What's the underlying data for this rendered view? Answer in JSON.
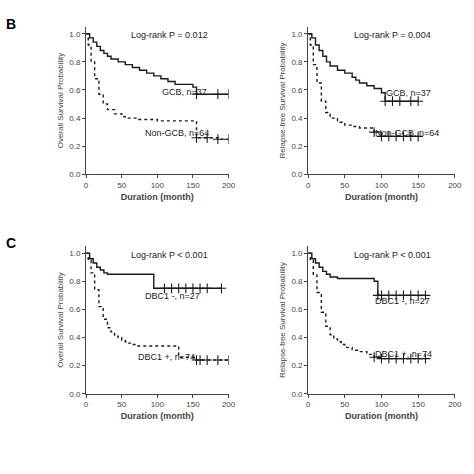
{
  "chart_data": [
    {
      "type": "step",
      "panel": "B",
      "annotation": "Log-rank P = 0.012",
      "xlabel": "Duration (month)",
      "ylabel": "Overall Survival Probability",
      "xlim": [
        0,
        200
      ],
      "ylim": [
        0.0,
        1.05
      ],
      "xticks": [
        0,
        50,
        100,
        150,
        200
      ],
      "yticks": [
        {
          "value": 0.0,
          "label": "0.0"
        },
        0.2,
        0.4,
        0.6,
        0.8,
        {
          "value": 1.0,
          "label": "1.0"
        }
      ],
      "grid": false,
      "series": [
        {
          "name": "GCB, n=37",
          "color": "#1a1a1a",
          "line_style": "solid",
          "marker": "cross",
          "x": [
            0,
            5,
            10,
            15,
            20,
            25,
            30,
            35,
            45,
            55,
            65,
            75,
            85,
            95,
            105,
            115,
            125,
            150,
            155,
            185,
            200
          ],
          "values": [
            1.0,
            0.97,
            0.94,
            0.91,
            0.88,
            0.86,
            0.84,
            0.82,
            0.8,
            0.78,
            0.76,
            0.74,
            0.72,
            0.7,
            0.68,
            0.66,
            0.64,
            0.62,
            0.57,
            0.57,
            0.57
          ],
          "censor_x": [
            155,
            185,
            200
          ],
          "censor_values": [
            0.57,
            0.57,
            0.57
          ]
        },
        {
          "name": "Non-GCB, n=64",
          "color": "#1a1a1a",
          "line_style": "dotted",
          "marker": "cross",
          "x": [
            0,
            3,
            7,
            12,
            18,
            24,
            30,
            40,
            50,
            55,
            60,
            70,
            80,
            90,
            100,
            110,
            150,
            155,
            170,
            185,
            200
          ],
          "values": [
            1.0,
            0.92,
            0.8,
            0.68,
            0.57,
            0.5,
            0.46,
            0.43,
            0.41,
            0.4,
            0.4,
            0.39,
            0.39,
            0.39,
            0.38,
            0.38,
            0.38,
            0.26,
            0.26,
            0.25,
            0.25
          ],
          "censor_x": [
            155,
            170,
            185,
            200
          ],
          "censor_values": [
            0.26,
            0.26,
            0.25,
            0.25
          ]
        }
      ]
    },
    {
      "type": "step",
      "annotation": "Log-rank P = 0.004",
      "xlabel": "Duration (month)",
      "ylabel": "Relapse-free Survival Probability",
      "xlim": [
        0,
        200
      ],
      "ylim": [
        0.0,
        1.05
      ],
      "xticks": [
        0,
        50,
        100,
        150,
        200
      ],
      "yticks": [
        {
          "value": 0.0,
          "label": "0.0"
        },
        0.2,
        0.4,
        0.6,
        0.8,
        {
          "value": 1.0,
          "label": "1.0"
        }
      ],
      "grid": false,
      "series": [
        {
          "name": "GCB, n=37",
          "color": "#1a1a1a",
          "line_style": "solid",
          "marker": "cross",
          "x": [
            0,
            5,
            10,
            15,
            20,
            25,
            30,
            40,
            50,
            60,
            65,
            70,
            80,
            90,
            100,
            105,
            115,
            125,
            140,
            150
          ],
          "values": [
            1.0,
            0.97,
            0.92,
            0.88,
            0.84,
            0.8,
            0.77,
            0.74,
            0.72,
            0.69,
            0.67,
            0.65,
            0.63,
            0.61,
            0.58,
            0.52,
            0.52,
            0.52,
            0.52,
            0.52
          ],
          "censor_x": [
            105,
            115,
            125,
            140,
            150
          ],
          "censor_values": [
            0.52,
            0.52,
            0.52,
            0.52,
            0.52
          ]
        },
        {
          "name": "Non-GCB, n=64",
          "color": "#1a1a1a",
          "line_style": "dotted",
          "marker": "cross",
          "x": [
            0,
            3,
            7,
            12,
            18,
            24,
            30,
            40,
            50,
            55,
            60,
            65,
            70,
            75,
            80,
            90,
            100,
            110,
            120,
            130,
            140,
            150
          ],
          "values": [
            1.0,
            0.92,
            0.78,
            0.65,
            0.52,
            0.44,
            0.4,
            0.37,
            0.35,
            0.35,
            0.34,
            0.34,
            0.33,
            0.33,
            0.33,
            0.3,
            0.27,
            0.27,
            0.27,
            0.27,
            0.27,
            0.27
          ],
          "censor_x": [
            90,
            100,
            110,
            120,
            130,
            140,
            150
          ],
          "censor_values": [
            0.3,
            0.27,
            0.27,
            0.27,
            0.27,
            0.27,
            0.27
          ]
        }
      ]
    },
    {
      "type": "step",
      "panel": "C",
      "annotation": "Log-rank P < 0.001",
      "xlabel": "Duration (month)",
      "ylabel": "Overall Survival Probability",
      "xlim": [
        0,
        200
      ],
      "ylim": [
        0.0,
        1.05
      ],
      "xticks": [
        0,
        50,
        100,
        150,
        200
      ],
      "yticks": [
        {
          "value": 0.0,
          "label": "0.0"
        },
        0.2,
        0.4,
        0.6,
        0.8,
        {
          "value": 1.0,
          "label": "1.0"
        }
      ],
      "grid": false,
      "series": [
        {
          "name": "DBC1 -, n=27",
          "color": "#1a1a1a",
          "line_style": "solid",
          "marker": "cross",
          "x": [
            0,
            5,
            10,
            15,
            20,
            25,
            30,
            35,
            40,
            50,
            60,
            70,
            80,
            90,
            95,
            100,
            110,
            120,
            130,
            140,
            150,
            160,
            170,
            190
          ],
          "values": [
            1.0,
            0.96,
            0.93,
            0.9,
            0.88,
            0.86,
            0.85,
            0.85,
            0.85,
            0.85,
            0.85,
            0.85,
            0.85,
            0.85,
            0.75,
            0.75,
            0.75,
            0.75,
            0.75,
            0.75,
            0.75,
            0.75,
            0.75,
            0.75
          ],
          "censor_x": [
            110,
            120,
            130,
            140,
            150,
            160,
            170,
            190
          ],
          "censor_values": [
            0.75,
            0.75,
            0.75,
            0.75,
            0.75,
            0.75,
            0.75,
            0.75
          ]
        },
        {
          "name": "DBC1 +, n=74",
          "color": "#1a1a1a",
          "line_style": "dotted",
          "marker": "cross",
          "x": [
            0,
            3,
            7,
            12,
            18,
            24,
            30,
            35,
            40,
            45,
            50,
            55,
            60,
            65,
            70,
            80,
            90,
            100,
            110,
            130,
            150,
            155,
            160,
            170,
            185,
            200
          ],
          "values": [
            1.0,
            0.95,
            0.86,
            0.74,
            0.62,
            0.53,
            0.47,
            0.44,
            0.41,
            0.4,
            0.38,
            0.37,
            0.36,
            0.35,
            0.34,
            0.34,
            0.34,
            0.34,
            0.34,
            0.26,
            0.26,
            0.24,
            0.24,
            0.24,
            0.24,
            0.24
          ],
          "censor_x": [
            155,
            160,
            170,
            185,
            200
          ],
          "censor_values": [
            0.24,
            0.24,
            0.24,
            0.24,
            0.24
          ]
        }
      ]
    },
    {
      "type": "step",
      "annotation": "Log-rank P < 0.001",
      "xlabel": "Duration (month)",
      "ylabel": "Relapse-free Survival Probability",
      "xlim": [
        0,
        200
      ],
      "ylim": [
        0.0,
        1.05
      ],
      "xticks": [
        0,
        50,
        100,
        150,
        200
      ],
      "yticks": [
        {
          "value": 0.0,
          "label": "0.0"
        },
        0.2,
        0.4,
        0.6,
        0.8,
        {
          "value": 1.0,
          "label": "1.0"
        }
      ],
      "grid": false,
      "series": [
        {
          "name": "DBC1 -, n=27",
          "color": "#1a1a1a",
          "line_style": "solid",
          "marker": "cross",
          "x": [
            0,
            5,
            10,
            15,
            20,
            25,
            30,
            40,
            50,
            60,
            70,
            80,
            90,
            95,
            100,
            110,
            120,
            130,
            140,
            150,
            160
          ],
          "values": [
            1.0,
            0.96,
            0.93,
            0.9,
            0.87,
            0.85,
            0.83,
            0.82,
            0.82,
            0.82,
            0.82,
            0.82,
            0.8,
            0.7,
            0.7,
            0.7,
            0.7,
            0.7,
            0.7,
            0.7,
            0.7
          ],
          "censor_x": [
            95,
            100,
            110,
            120,
            130,
            140,
            150,
            160
          ],
          "censor_values": [
            0.7,
            0.7,
            0.7,
            0.7,
            0.7,
            0.7,
            0.7,
            0.7
          ]
        },
        {
          "name": "DBC1 +, n=74",
          "color": "#1a1a1a",
          "line_style": "dotted",
          "marker": "cross",
          "x": [
            0,
            3,
            7,
            12,
            18,
            24,
            30,
            35,
            40,
            45,
            50,
            60,
            70,
            80,
            90,
            100,
            110,
            120,
            130,
            140,
            150,
            160
          ],
          "values": [
            1.0,
            0.95,
            0.85,
            0.72,
            0.58,
            0.48,
            0.42,
            0.39,
            0.37,
            0.35,
            0.33,
            0.31,
            0.3,
            0.28,
            0.26,
            0.25,
            0.25,
            0.25,
            0.25,
            0.25,
            0.25,
            0.25
          ],
          "censor_x": [
            90,
            100,
            110,
            120,
            130,
            140,
            150,
            160
          ],
          "censor_values": [
            0.26,
            0.25,
            0.25,
            0.25,
            0.25,
            0.25,
            0.25,
            0.25
          ]
        }
      ]
    }
  ]
}
